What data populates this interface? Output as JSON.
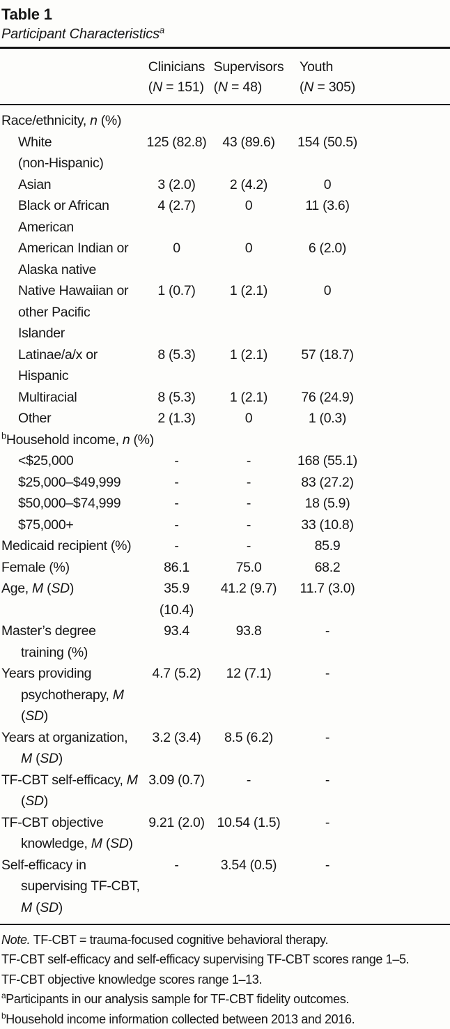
{
  "page": {
    "background": "#fdfdfb",
    "text_color": "#161616",
    "rule_color": "#161616"
  },
  "table": {
    "title": "Table 1",
    "subtitle": "*Participant Characteristics*^*a*^",
    "columns": [
      {
        "header": "Clinicians\n(*N* = 151)"
      },
      {
        "header": "Supervisors\n(*N* = 48)"
      },
      {
        "header": "Youth\n(*N* = 305)"
      }
    ],
    "rows": [
      {
        "label": "Race/ethnicity, *n* (%)",
        "indent": 0,
        "values": [
          "",
          "",
          ""
        ]
      },
      {
        "label": "White\n(non-Hispanic)",
        "indent": 1,
        "values": [
          "125 (82.8)",
          "43 (89.6)",
          "154 (50.5)"
        ]
      },
      {
        "label": "Asian",
        "indent": 1,
        "values": [
          "3 (2.0)",
          "2 (4.2)",
          "0"
        ]
      },
      {
        "label": "Black or African\nAmerican",
        "indent": 1,
        "values": [
          "4 (2.7)",
          "0",
          "11 (3.6)"
        ]
      },
      {
        "label": "American Indian or\nAlaska native",
        "indent": 1,
        "values": [
          "0",
          "0",
          "6 (2.0)"
        ]
      },
      {
        "label": "Native Hawaiian or\nother Pacific\nIslander",
        "indent": 1,
        "values": [
          "1 (0.7)",
          "1 (2.1)",
          "0"
        ]
      },
      {
        "label": "Latinae/a/x or\nHispanic",
        "indent": 1,
        "values": [
          "8 (5.3)",
          "1 (2.1)",
          "57 (18.7)"
        ]
      },
      {
        "label": "Multiracial",
        "indent": 1,
        "values": [
          "8 (5.3)",
          "1 (2.1)",
          "76 (24.9)"
        ]
      },
      {
        "label": "Other",
        "indent": 1,
        "values": [
          "2 (1.3)",
          "0",
          "1 (0.3)"
        ]
      },
      {
        "label": "^b^Household income, *n* (%)",
        "indent": 0,
        "values": [
          "",
          "",
          ""
        ]
      },
      {
        "label": "<$25,000",
        "indent": 1,
        "values": [
          "-",
          "-",
          "168 (55.1)"
        ]
      },
      {
        "label": "$25,000–$49,999",
        "indent": 1,
        "values": [
          "-",
          "-",
          "83 (27.2)"
        ]
      },
      {
        "label": "$50,000–$74,999",
        "indent": 1,
        "values": [
          "-",
          "-",
          "18 (5.9)"
        ]
      },
      {
        "label": "$75,000+",
        "indent": 1,
        "values": [
          "-",
          "-",
          "33 (10.8)"
        ]
      },
      {
        "label": "Medicaid recipient (%)",
        "indent": 0,
        "values": [
          "-",
          "-",
          "85.9"
        ]
      },
      {
        "label": "Female (%)",
        "indent": 0,
        "values": [
          "86.1",
          "75.0",
          "68.2"
        ]
      },
      {
        "label": "Age, *M* (*SD*)",
        "indent": 0,
        "values": [
          "35.9\n(10.4)",
          "41.2 (9.7)",
          "11.7 (3.0)"
        ]
      },
      {
        "label": "Master’s degree\ntraining (%)",
        "indent": 0,
        "values": [
          "93.4",
          "93.8",
          "-"
        ]
      },
      {
        "label": "Years providing\npsychotherapy, *M*\n(*SD*)",
        "indent": 0,
        "values": [
          "4.7 (5.2)",
          "12 (7.1)",
          "-"
        ]
      },
      {
        "label": "Years at organization,\n*M* (*SD*)",
        "indent": 0,
        "values": [
          "3.2 (3.4)",
          "8.5 (6.2)",
          "-"
        ]
      },
      {
        "label": "TF-CBT self-efficacy, *M*\n(*SD*)",
        "indent": 0,
        "values": [
          "3.09 (0.7)",
          "-",
          "-"
        ]
      },
      {
        "label": "TF-CBT objective\nknowledge, *M* (*SD*)",
        "indent": 0,
        "values": [
          "9.21 (2.0)",
          "10.54 (1.5)",
          "-"
        ]
      },
      {
        "label": "Self-efficacy in\nsupervising TF-CBT,\n*M* (*SD*)",
        "indent": 0,
        "values": [
          "-",
          "3.54 (0.5)",
          "-"
        ]
      }
    ],
    "notes": [
      "*Note.* TF-CBT = trauma-focused cognitive behavioral therapy.",
      "TF-CBT self-efficacy and self-efficacy supervising TF-CBT scores range 1–5.",
      "TF-CBT objective knowledge scores range 1–13.",
      "^a^Participants in our analysis sample for TF-CBT fidelity outcomes.",
      "^b^Household income information collected between 2013 and 2016."
    ]
  }
}
